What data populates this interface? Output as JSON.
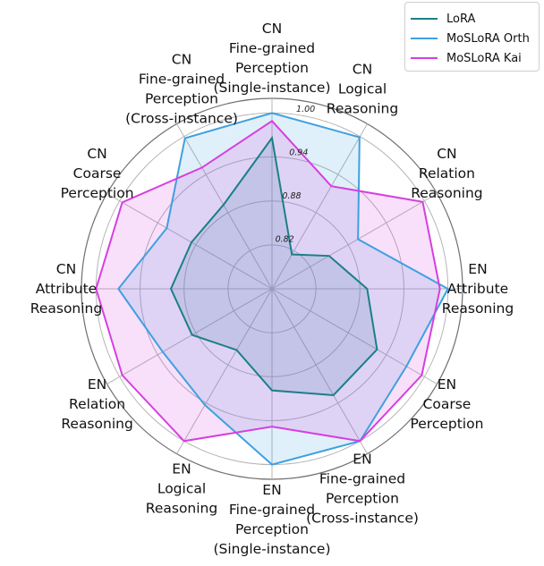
{
  "chart_data": {
    "type": "radar",
    "axes": [
      {
        "name": "CN Fine-grained Perception (Single-instance)",
        "lines": [
          "CN",
          "Fine-grained",
          "Perception",
          "(Single-instance)"
        ]
      },
      {
        "name": "CN Logical Reasoning",
        "lines": [
          "CN",
          "Logical",
          "Reasoning"
        ]
      },
      {
        "name": "CN Relation Reasoning",
        "lines": [
          "CN",
          "Relation",
          "Reasoning"
        ]
      },
      {
        "name": "EN Attribute Reasoning",
        "lines": [
          "EN",
          "Attribute",
          "Reasoning"
        ]
      },
      {
        "name": "EN Coarse Perception",
        "lines": [
          "EN",
          "Coarse",
          "Perception"
        ]
      },
      {
        "name": "EN Fine-grained Perception (Cross-instance)",
        "lines": [
          "EN",
          "Fine-grained",
          "Perception",
          "(Cross-instance)"
        ]
      },
      {
        "name": "EN Fine-grained Perception (Single-instance)",
        "lines": [
          "EN",
          "Fine-grained",
          "Perception",
          "(Single-instance)"
        ]
      },
      {
        "name": "EN Logical Reasoning",
        "lines": [
          "EN",
          "Logical",
          "Reasoning"
        ]
      },
      {
        "name": "EN Relation Reasoning",
        "lines": [
          "EN",
          "Relation",
          "Reasoning"
        ]
      },
      {
        "name": "CN Attribute Reasoning",
        "lines": [
          "CN",
          "Attribute",
          "Reasoning"
        ]
      },
      {
        "name": "CN Coarse Perception",
        "lines": [
          "CN",
          "Coarse",
          "Perception"
        ]
      },
      {
        "name": "CN Fine-grained Perception (Cross-instance)",
        "lines": [
          "CN",
          "Fine-grained",
          "Perception",
          "(Cross-instance)"
        ]
      }
    ],
    "radial_ticks": [
      0.82,
      0.88,
      0.94,
      1.0
    ],
    "radial_tick_labels": [
      "0.82",
      "0.88",
      "0.94",
      "1.00"
    ],
    "rlim": [
      0.76,
      1.02
    ],
    "series": [
      {
        "name": "LoRA",
        "color": "#1b7f86",
        "values": [
          0.9659,
          0.8143,
          0.8499,
          0.8898,
          0.9255,
          0.9277,
          0.8987,
          0.8565,
          0.8859,
          0.8979,
          0.8869,
          0.8924
        ]
      },
      {
        "name": "MoSLoRA Orth",
        "color": "#3fa0e0",
        "values": [
          1.0,
          0.9989,
          0.8955,
          1.0,
          0.9717,
          1.0,
          1.0,
          0.9432,
          0.9322,
          0.9696,
          0.9258,
          0.9974
        ]
      },
      {
        "name": "MoSLoRA Kai",
        "color": "#d63fe0",
        "values": [
          0.9891,
          0.9218,
          0.9974,
          0.9891,
          0.9959,
          1.0,
          0.9482,
          1.0,
          0.9959,
          1.0,
          0.9959,
          0.9511
        ]
      }
    ],
    "legend": "top-right",
    "grid": true
  }
}
